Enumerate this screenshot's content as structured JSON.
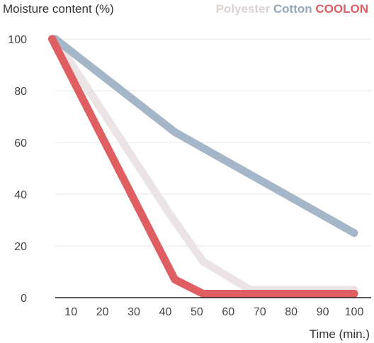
{
  "chart_data": {
    "type": "line",
    "title": "",
    "ylabel": "Moisture content (%)",
    "xlabel": "Time (min.)",
    "xlim": [
      5,
      100
    ],
    "ylim": [
      0,
      100
    ],
    "x_ticks": [
      10,
      20,
      30,
      40,
      50,
      60,
      70,
      80,
      90,
      100
    ],
    "y_ticks": [
      0,
      20,
      40,
      60,
      80,
      100
    ],
    "grid": "horizontal",
    "legend_position": "top-right",
    "series": [
      {
        "name": "Polyester",
        "color": "#ece4e4",
        "x": [
          5,
          41,
          52,
          67,
          100
        ],
        "y": [
          100,
          33,
          14,
          3,
          3
        ]
      },
      {
        "name": "Cotton",
        "color": "#a4b6c7",
        "x": [
          5,
          43,
          100
        ],
        "y": [
          100,
          64,
          25
        ]
      },
      {
        "name": "COOLON",
        "color": "#de5e62",
        "x": [
          4,
          43,
          52,
          100
        ],
        "y": [
          100,
          7,
          1.5,
          1.5
        ]
      }
    ]
  }
}
